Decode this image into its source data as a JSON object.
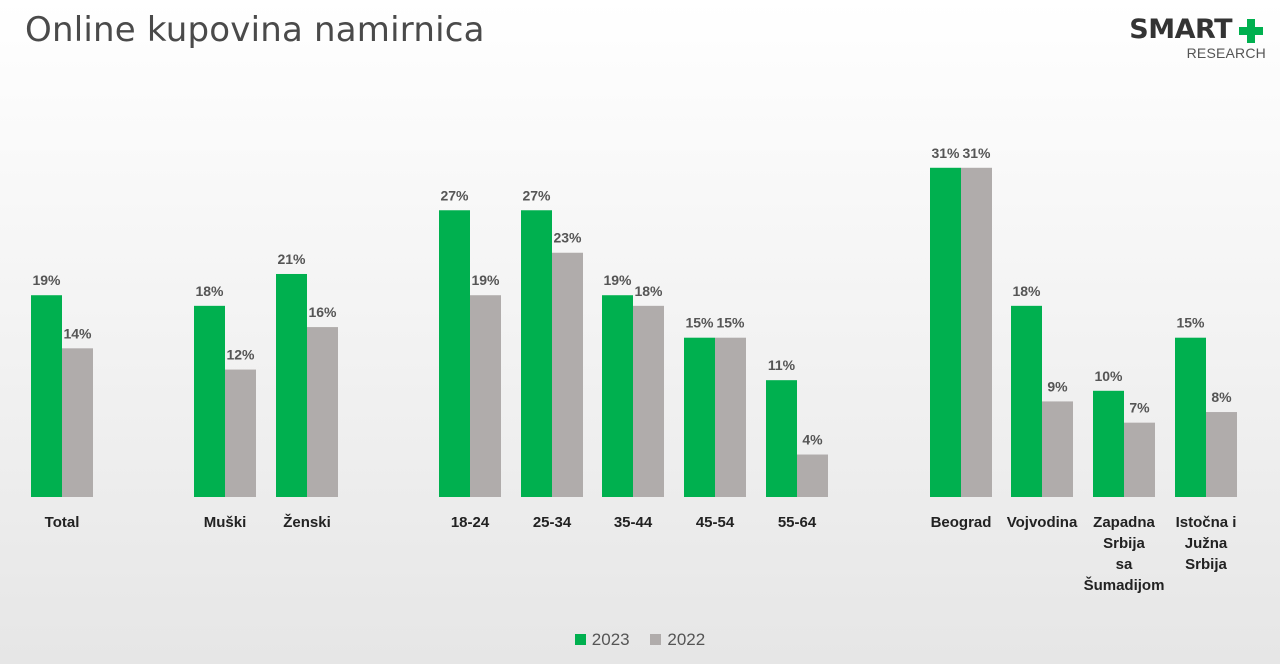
{
  "title": "Online kupovina namirnica",
  "logo": {
    "main": "SMART",
    "sub": "RESEARCH",
    "icon": "plus-icon",
    "color": "#00b04f"
  },
  "colors": {
    "s2023": "#00b04f",
    "s2022": "#b0acab"
  },
  "chart_data": {
    "type": "bar",
    "title": "Online kupovina namirnica",
    "ylim": [
      0,
      40
    ],
    "grid": false,
    "legend_position": "bottom-center",
    "series": [
      {
        "name": "2023",
        "color": "#00b04f",
        "values": [
          19,
          18,
          21,
          27,
          27,
          19,
          15,
          11,
          31,
          18,
          10,
          15
        ]
      },
      {
        "name": "2022",
        "color": "#b0acab",
        "values": [
          14,
          12,
          16,
          19,
          23,
          18,
          15,
          4,
          31,
          9,
          7,
          8
        ]
      }
    ],
    "categories": [
      [
        "Total"
      ],
      [
        "Muški"
      ],
      [
        "Ženski"
      ],
      [
        "18-24"
      ],
      [
        "25-34"
      ],
      [
        "35-44"
      ],
      [
        "45-54"
      ],
      [
        "55-64"
      ],
      [
        "Beograd"
      ],
      [
        "Vojvodina"
      ],
      [
        "Zapadna",
        "Srbija",
        "sa",
        "Šumadijom"
      ],
      [
        "Istočna i",
        "Južna",
        "Srbija"
      ]
    ],
    "labels_2023": [
      "19%",
      "18%",
      "21%",
      "27%",
      "27%",
      "19%",
      "15%",
      "11%",
      "31%",
      "18%",
      "10%",
      "15%"
    ],
    "labels_2022": [
      "14%",
      "12%",
      "16%",
      "19%",
      "23%",
      "18%",
      "15%",
      "4%",
      "31%",
      "9%",
      "7%",
      "8%"
    ]
  }
}
